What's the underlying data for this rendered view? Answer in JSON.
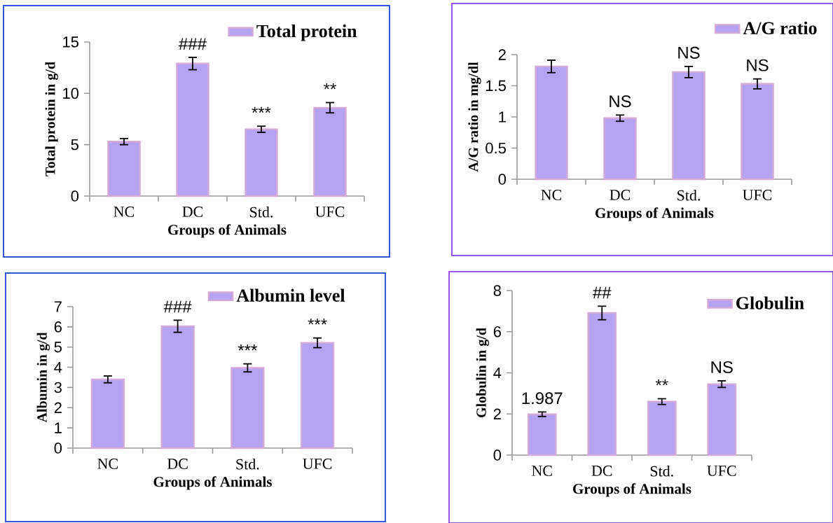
{
  "chart_data": [
    {
      "type": "bar",
      "xlabel": "Groups  of Animals",
      "ylabel": "Total  protein in g/d",
      "categories": [
        "NC",
        "DC",
        "Std.",
        "UFC"
      ],
      "series": [
        {
          "name": "Total protein",
          "color": "#b4a2f2",
          "values": [
            5.3,
            12.9,
            6.5,
            8.6
          ],
          "errors": [
            0.3,
            0.6,
            0.3,
            0.5
          ]
        }
      ],
      "ylim": [
        0,
        15
      ],
      "yticks": [
        0,
        5,
        10,
        15
      ],
      "legend": "top right",
      "annotations": [
        {
          "text": "###",
          "x": "DC",
          "y": 13.5
        },
        {
          "text": "***",
          "x": "Std.",
          "y": 6.8
        },
        {
          "text": "**",
          "x": "UFC",
          "y": 9.1
        }
      ]
    },
    {
      "type": "bar",
      "xlabel": "Groups  of Animals",
      "ylabel": "A/G ratio in mg/dl",
      "categories": [
        "NC",
        "DC",
        "Std.",
        "UFC"
      ],
      "series": [
        {
          "name": "A/G ratio",
          "color": "#b4a2f2",
          "values": [
            1.81,
            0.98,
            1.72,
            1.53
          ],
          "errors": [
            0.1,
            0.05,
            0.09,
            0.08
          ]
        }
      ],
      "ylim": [
        0,
        2
      ],
      "yticks": [
        0,
        0.5,
        1,
        1.5,
        2
      ],
      "legend": "top right",
      "annotations": [
        {
          "text": "NS",
          "x": "DC",
          "y": 1.03
        },
        {
          "text": "NS",
          "x": "Std.",
          "y": 1.81
        },
        {
          "text": "NS",
          "x": "UFC",
          "y": 1.61
        }
      ]
    },
    {
      "type": "bar",
      "xlabel": "Groups  of Animals",
      "ylabel": "Albumin  in g/d",
      "categories": [
        "NC",
        "DC",
        "Std.",
        "UFC"
      ],
      "series": [
        {
          "name": "Albumin level",
          "color": "#b4a2f2",
          "values": [
            3.4,
            6.03,
            3.97,
            5.21
          ],
          "errors": [
            0.17,
            0.3,
            0.2,
            0.24
          ]
        }
      ],
      "ylim": [
        0,
        7
      ],
      "yticks": [
        0,
        1,
        2,
        3,
        4,
        5,
        6,
        7
      ],
      "legend": "top right",
      "annotations": [
        {
          "text": "###",
          "x": "DC",
          "y": 6.33
        },
        {
          "text": "***",
          "x": "Std.",
          "y": 4.17
        },
        {
          "text": "***",
          "x": "UFC",
          "y": 5.45
        }
      ]
    },
    {
      "type": "bar",
      "xlabel": "Groups  of Animals",
      "ylabel": "Globulin  in g/d",
      "categories": [
        "NC",
        "DC",
        "Std.",
        "UFC"
      ],
      "series": [
        {
          "name": "Globulin",
          "color": "#b4a2f2",
          "values": [
            1.987,
            6.91,
            2.6,
            3.45
          ],
          "errors": [
            0.11,
            0.33,
            0.14,
            0.16
          ],
          "value_labels": [
            "1.987",
            null,
            null,
            null
          ]
        }
      ],
      "ylim": [
        0,
        8
      ],
      "yticks": [
        0,
        2,
        4,
        6,
        8
      ],
      "legend": "top right",
      "annotations": [
        {
          "text": "##",
          "x": "DC",
          "y": 7.24
        },
        {
          "text": "**",
          "x": "Std.",
          "y": 2.74
        },
        {
          "text": "NS",
          "x": "UFC",
          "y": 3.61
        }
      ]
    }
  ]
}
